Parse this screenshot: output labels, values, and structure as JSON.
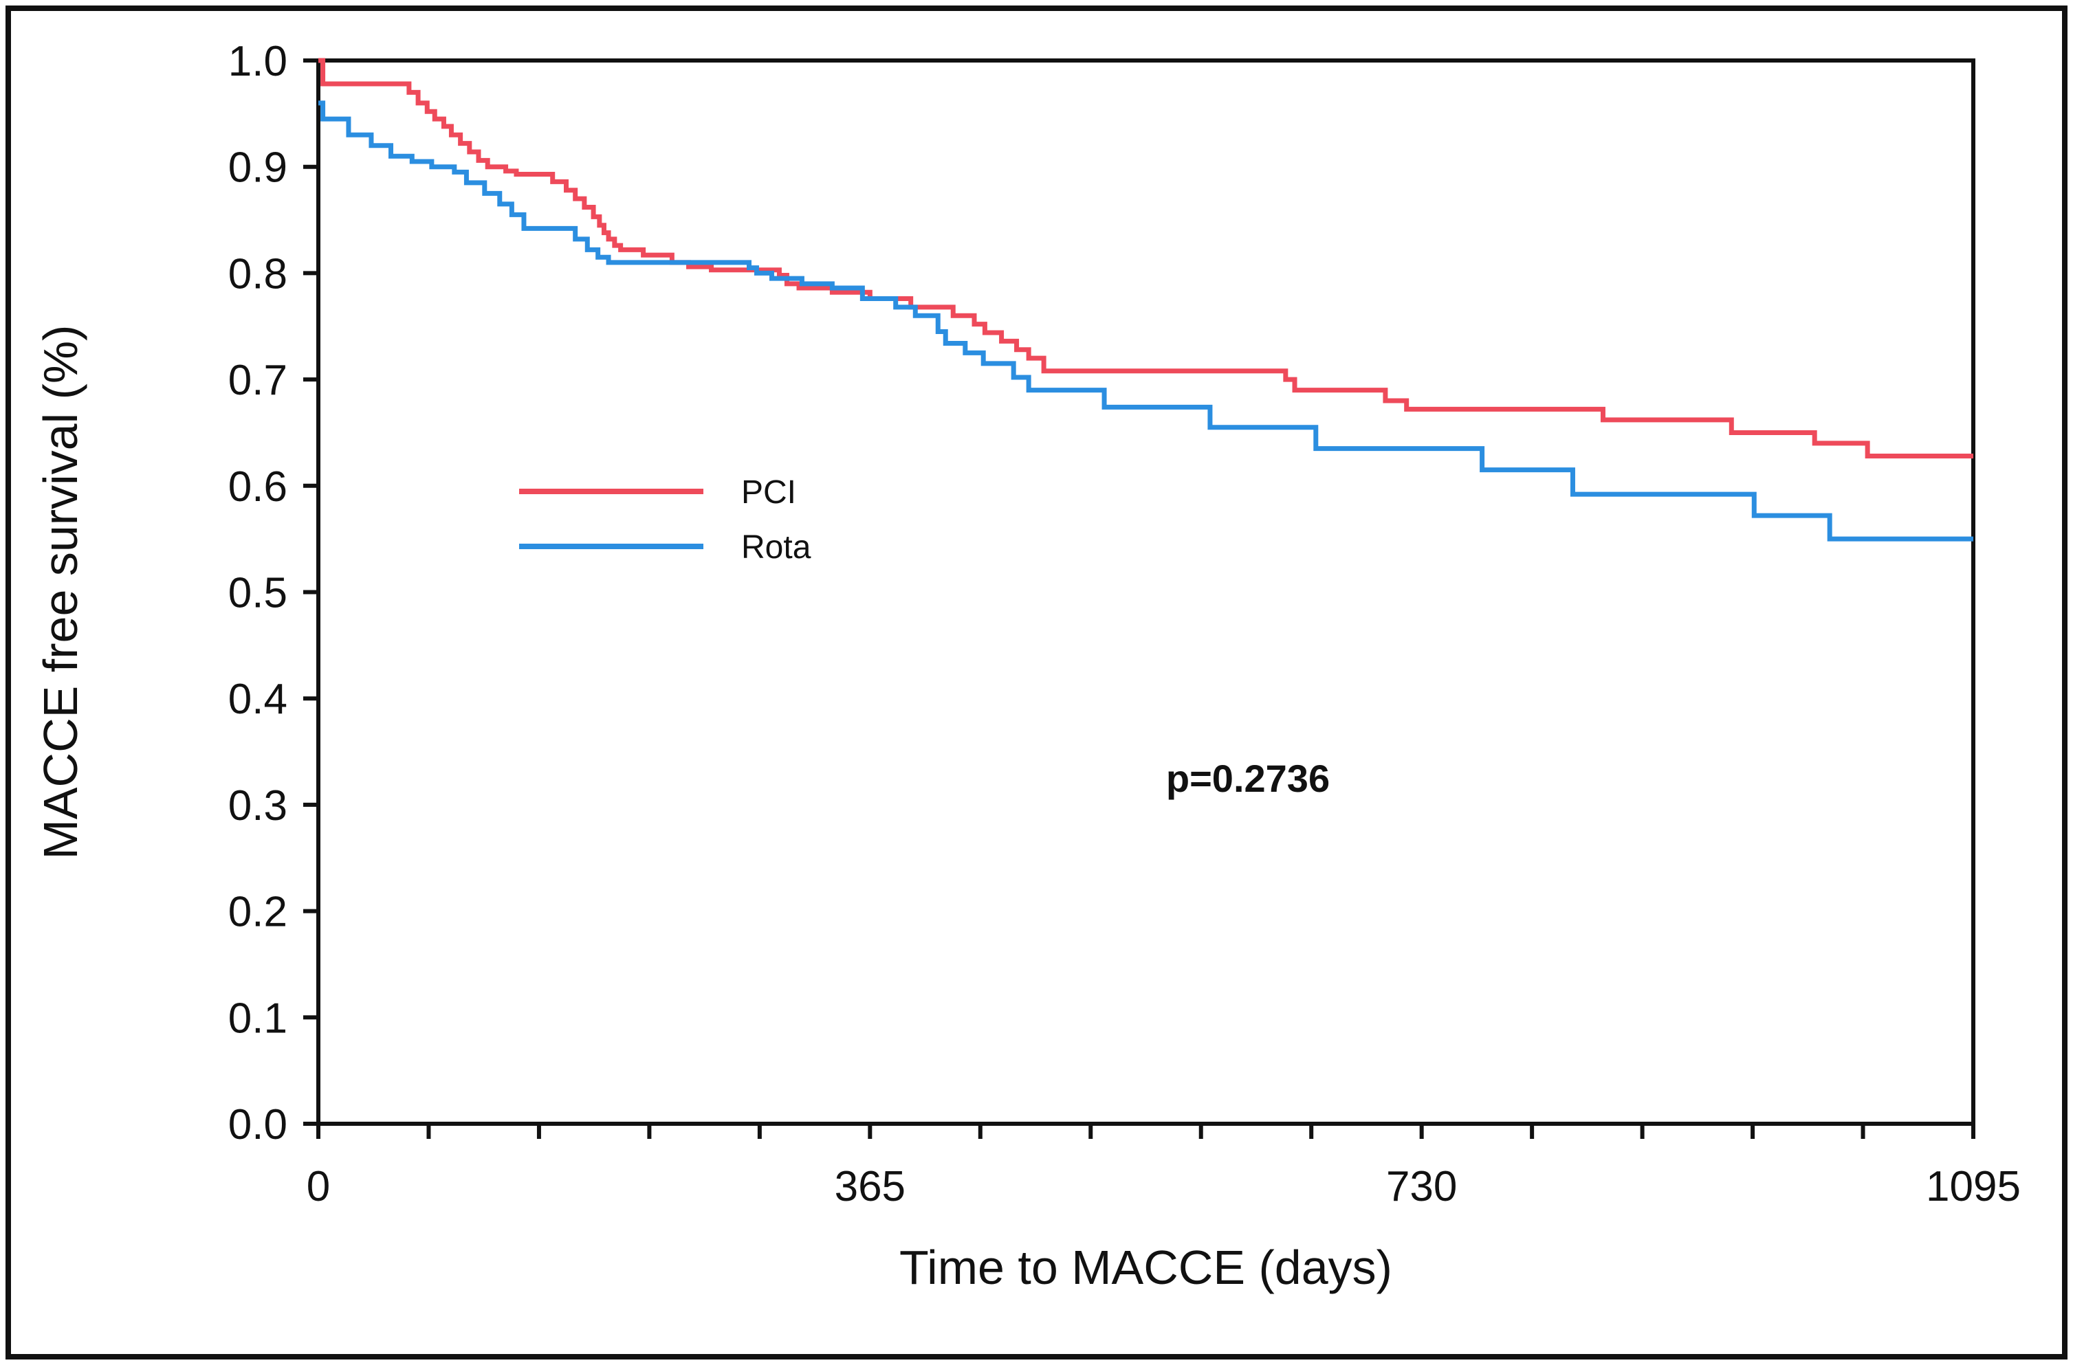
{
  "chart_data": {
    "type": "line",
    "step": true,
    "xlabel": "Time to MACCE (days)",
    "ylabel": "MACCE free survival (%)",
    "xlim": [
      0,
      1095
    ],
    "ylim": [
      0.0,
      1.0
    ],
    "xticks": [
      0,
      365,
      730,
      1095
    ],
    "xtick_labels": [
      "0",
      "365",
      "730",
      "1095"
    ],
    "yticks": [
      0.0,
      0.1,
      0.2,
      0.3,
      0.4,
      0.5,
      0.6,
      0.7,
      0.8,
      0.9,
      1.0
    ],
    "ytick_labels": [
      "0.0",
      "0.1",
      "0.2",
      "0.3",
      "0.4",
      "0.5",
      "0.6",
      "0.7",
      "0.8",
      "0.9",
      "1.0"
    ],
    "minor_xticks": [
      0,
      73,
      146,
      219,
      292,
      365,
      438,
      511,
      584,
      657,
      730,
      803,
      876,
      949,
      1022,
      1095
    ],
    "grid": false,
    "legend": "middle-left",
    "annotation": "p=0.2736",
    "series": [
      {
        "name": "PCI",
        "color": "#ee4a5a",
        "x": [
          0,
          3,
          55,
          60,
          66,
          72,
          77,
          83,
          88,
          94,
          100,
          106,
          112,
          118,
          124,
          131,
          139,
          155,
          164,
          170,
          176,
          182,
          186,
          189,
          192,
          196,
          200,
          205,
          215,
          234,
          245,
          260,
          305,
          310,
          318,
          340,
          365,
          392,
          420,
          434,
          441,
          452,
          462,
          470,
          480,
          520,
          640,
          646,
          706,
          720,
          760,
          850,
          935,
          990,
          1025,
          1095
        ],
        "y": [
          1.0,
          0.978,
          0.978,
          0.97,
          0.96,
          0.952,
          0.945,
          0.938,
          0.93,
          0.922,
          0.914,
          0.906,
          0.9,
          0.9,
          0.896,
          0.893,
          0.893,
          0.886,
          0.878,
          0.87,
          0.862,
          0.853,
          0.845,
          0.838,
          0.832,
          0.826,
          0.822,
          0.822,
          0.817,
          0.81,
          0.806,
          0.803,
          0.798,
          0.79,
          0.786,
          0.782,
          0.776,
          0.768,
          0.76,
          0.752,
          0.744,
          0.736,
          0.728,
          0.72,
          0.708,
          0.708,
          0.7,
          0.69,
          0.68,
          0.672,
          0.672,
          0.662,
          0.65,
          0.64,
          0.628,
          0.628
        ],
        "yend": 0.628
      },
      {
        "name": "Rota",
        "color": "#2b8ee0",
        "x": [
          0,
          3,
          20,
          35,
          48,
          62,
          75,
          90,
          98,
          110,
          120,
          128,
          136,
          165,
          170,
          178,
          185,
          192,
          200,
          280,
          285,
          290,
          300,
          320,
          340,
          360,
          382,
          395,
          410,
          415,
          428,
          440,
          460,
          470,
          520,
          590,
          660,
          770,
          830,
          950,
          1000,
          1095
        ],
        "y": [
          0.96,
          0.945,
          0.93,
          0.92,
          0.91,
          0.905,
          0.9,
          0.895,
          0.885,
          0.875,
          0.865,
          0.855,
          0.842,
          0.842,
          0.832,
          0.822,
          0.815,
          0.81,
          0.81,
          0.81,
          0.805,
          0.8,
          0.795,
          0.79,
          0.786,
          0.776,
          0.768,
          0.76,
          0.745,
          0.734,
          0.725,
          0.715,
          0.702,
          0.69,
          0.674,
          0.655,
          0.635,
          0.615,
          0.592,
          0.572,
          0.55,
          0.55
        ],
        "yend": 0.55
      }
    ]
  }
}
